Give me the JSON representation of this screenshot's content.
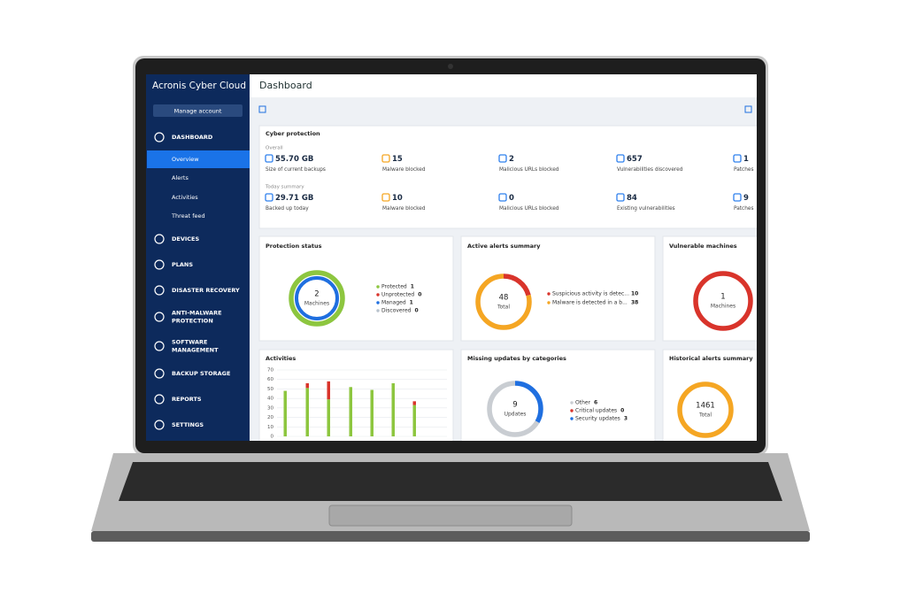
{
  "sidebar": {
    "brand": "Acronis Cyber Cloud",
    "button": "Manage account",
    "nav": [
      {
        "lines": [
          "DASHBOARD"
        ],
        "children": [
          "Overview",
          "Alerts",
          "Activities",
          "Threat feed"
        ]
      },
      {
        "lines": [
          "DEVICES"
        ]
      },
      {
        "lines": [
          "PLANS"
        ]
      },
      {
        "lines": [
          "DISASTER RECOVERY"
        ]
      },
      {
        "lines": [
          "ANTI-MALWARE",
          "PROTECTION"
        ]
      },
      {
        "lines": [
          "SOFTWARE",
          "MANAGEMENT"
        ]
      },
      {
        "lines": [
          "BACKUP STORAGE"
        ]
      },
      {
        "lines": [
          "REPORTS"
        ]
      },
      {
        "lines": [
          "SETTINGS"
        ]
      }
    ]
  },
  "header": {
    "title": "Dashboard"
  },
  "cyber_protection": {
    "title": "Cyber protection",
    "sections": [
      {
        "label": "Overall",
        "items": [
          {
            "value": "55.70 GB",
            "label": "Size of current backups"
          },
          {
            "value": 15,
            "label": "Malware blocked"
          },
          {
            "value": 2,
            "label": "Malicious URLs blocked"
          },
          {
            "value": 657,
            "label": "Vulnerabilities discovered"
          },
          {
            "value": 1,
            "label": "Patches"
          }
        ]
      },
      {
        "label": "Today summary",
        "items": [
          {
            "value": "29.71 GB",
            "label": "Backed up today"
          },
          {
            "value": 10,
            "label": "Malware blocked"
          },
          {
            "value": 0,
            "label": "Malicious URLs blocked"
          },
          {
            "value": 84,
            "label": "Existing vulnerabilities"
          },
          {
            "value": 9,
            "label": "Patches"
          }
        ]
      }
    ]
  },
  "protection_status": {
    "title": "Protection status",
    "total": 2,
    "total_label": "Machines",
    "legend": [
      {
        "label": "Protected",
        "value": 1,
        "color": "#8dc63f"
      },
      {
        "label": "Unprotected",
        "value": 0,
        "color": "#d9342b"
      },
      {
        "label": "Managed",
        "value": 1,
        "color": "#1f6fe0"
      },
      {
        "label": "Discovered",
        "value": 0,
        "color": "#b8c2cc"
      }
    ]
  },
  "active_alerts": {
    "title": "Active alerts summary",
    "total": 48,
    "total_label": "Total",
    "legend": [
      {
        "label": "Suspicious activity is detec...",
        "value": 10,
        "color": "#d9342b"
      },
      {
        "label": "Malware is detected in a b...",
        "value": 38,
        "color": "#f5a623"
      }
    ]
  },
  "vulnerable_machines": {
    "title": "Vulnerable machines",
    "total": 1,
    "total_label": "Machines",
    "color": "#d9342b"
  },
  "activities": {
    "title": "Activities",
    "ylim": [
      0,
      70
    ],
    "yticks": [
      0,
      10,
      20,
      30,
      40,
      50,
      60,
      70
    ],
    "series": [
      {
        "color": "#8dc63f",
        "values": [
          48,
          51,
          39,
          52,
          49,
          56,
          33
        ]
      },
      {
        "color": "#d9342b",
        "values": [
          0,
          5,
          19,
          0,
          0,
          0,
          4
        ]
      }
    ]
  },
  "missing_updates": {
    "title": "Missing updates by categories",
    "total": 9,
    "total_label": "Updates",
    "legend": [
      {
        "label": "Other",
        "value": 6,
        "color": "#c9cdd2"
      },
      {
        "label": "Critical updates",
        "value": 0,
        "color": "#d9342b"
      },
      {
        "label": "Security updates",
        "value": 3,
        "color": "#1f6fe0"
      }
    ]
  },
  "historical_alerts": {
    "title": "Historical alerts summary",
    "total": 1461,
    "total_label": "Total",
    "color": "#f5a623"
  }
}
